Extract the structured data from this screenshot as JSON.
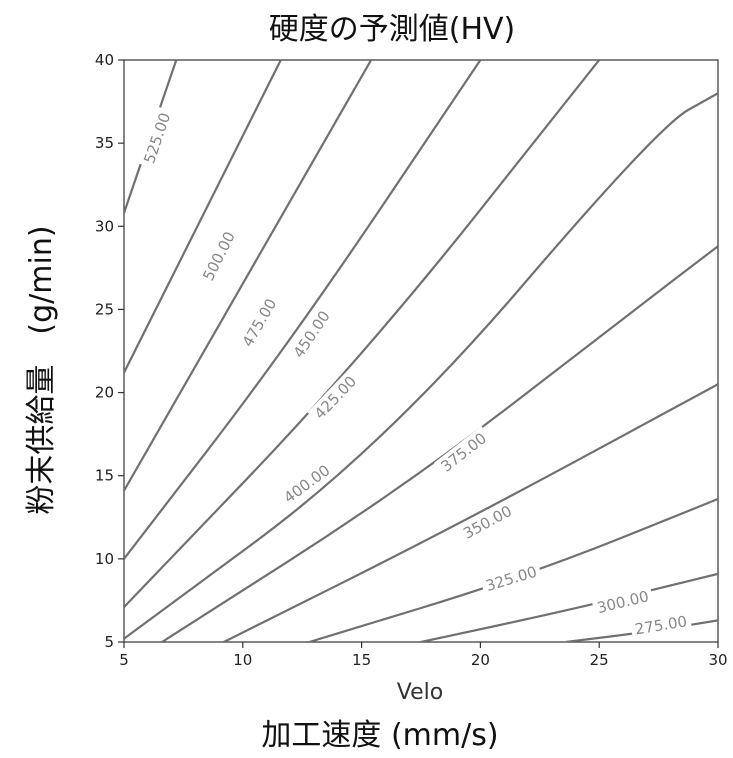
{
  "chart_data": {
    "type": "contour",
    "title": "硬度の予測値(HV)",
    "xlabel_axis": "Velo",
    "xlabel": "加工速度 (mm/s)",
    "ylabel": "粉末供給量　(g/min)",
    "xlim": [
      5,
      30
    ],
    "ylim": [
      5,
      40
    ],
    "xticks": [
      5,
      10,
      15,
      20,
      25,
      30
    ],
    "yticks": [
      5,
      10,
      15,
      20,
      25,
      30,
      35,
      40
    ],
    "grid": false,
    "contours": [
      {
        "level": 525,
        "label": "525.00",
        "points": [
          [
            5,
            30.8
          ],
          [
            7.2,
            40
          ]
        ]
      },
      {
        "level": 500,
        "label": "500.00",
        "points": [
          [
            5,
            21.2
          ],
          [
            11.6,
            40
          ]
        ]
      },
      {
        "level": 475,
        "label": "475.00",
        "points": [
          [
            5,
            14.1
          ],
          [
            15.0,
            39
          ],
          [
            15.4,
            40
          ]
        ]
      },
      {
        "level": 450,
        "label": "450.00",
        "points": [
          [
            5,
            10.0
          ],
          [
            12,
            23
          ],
          [
            20.0,
            40
          ]
        ]
      },
      {
        "level": 425,
        "label": "425.00",
        "points": [
          [
            5,
            7.1
          ],
          [
            15,
            22
          ],
          [
            25.0,
            40
          ]
        ]
      },
      {
        "level": 400,
        "label": "400.00",
        "points": [
          [
            5,
            5.2
          ],
          [
            16,
            16.8
          ],
          [
            27.5,
            36.0
          ],
          [
            30,
            38.0
          ]
        ]
      },
      {
        "level": 375,
        "label": "375.00",
        "points": [
          [
            6.6,
            5.0
          ],
          [
            17,
            14.5
          ],
          [
            26.5,
            25.0
          ],
          [
            30,
            28.8
          ]
        ]
      },
      {
        "level": 350,
        "label": "350.00",
        "points": [
          [
            9.2,
            5.0
          ],
          [
            19,
            12.0
          ],
          [
            30,
            20.5
          ]
        ]
      },
      {
        "level": 325,
        "label": "325.00",
        "points": [
          [
            12.8,
            5.0
          ],
          [
            22,
            9.0
          ],
          [
            30,
            13.6
          ]
        ]
      },
      {
        "level": 300,
        "label": "300.00",
        "points": [
          [
            17.5,
            5.0
          ],
          [
            24,
            7.0
          ],
          [
            30,
            9.1
          ]
        ]
      },
      {
        "level": 275,
        "label": "275.00",
        "points": [
          [
            23.6,
            5.0
          ],
          [
            27,
            5.6
          ],
          [
            30,
            6.3
          ]
        ]
      }
    ],
    "label_positions": [
      {
        "label": "525.00",
        "x": 6.4,
        "y": 35.3
      },
      {
        "label": "500.00",
        "x": 9.0,
        "y": 28.2
      },
      {
        "label": "475.00",
        "x": 10.7,
        "y": 24.2
      },
      {
        "label": "450.00",
        "x": 12.9,
        "y": 23.5
      },
      {
        "label": "425.00",
        "x": 13.9,
        "y": 19.7
      },
      {
        "label": "400.00",
        "x": 12.7,
        "y": 14.5
      },
      {
        "label": "375.00",
        "x": 19.3,
        "y": 16.4
      },
      {
        "label": "350.00",
        "x": 20.3,
        "y": 12.2
      },
      {
        "label": "325.00",
        "x": 21.3,
        "y": 8.8
      },
      {
        "label": "300.00",
        "x": 26.0,
        "y": 7.4
      },
      {
        "label": "275.00",
        "x": 27.6,
        "y": 6.0
      }
    ]
  }
}
